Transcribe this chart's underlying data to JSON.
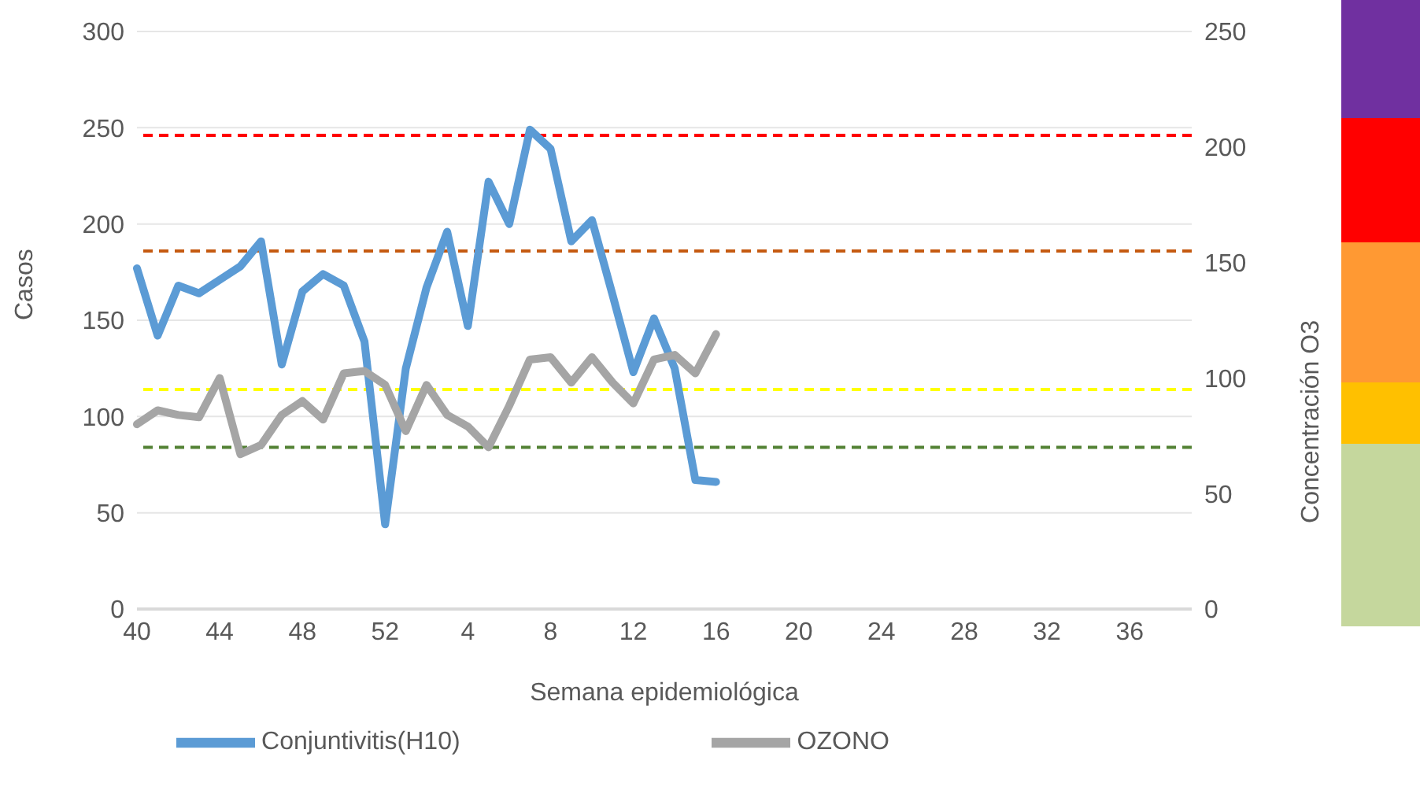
{
  "chart_data": {
    "type": "line",
    "xlabel": "Semana epidemiológica",
    "ylabel": "Casos",
    "y2label": "Concentración O3",
    "categories": [
      "40",
      null,
      null,
      null,
      "44",
      null,
      null,
      null,
      "48",
      null,
      null,
      null,
      "52",
      null,
      null,
      null,
      "4",
      null,
      null,
      null,
      "8",
      null,
      null,
      null,
      "12",
      null,
      null,
      null,
      "16",
      null,
      null,
      null,
      "20",
      null,
      null,
      null,
      "24",
      null,
      null,
      null,
      "28",
      null,
      null,
      null,
      "32",
      null,
      null,
      null,
      "36",
      null,
      null,
      null
    ],
    "series": [
      {
        "name": "Conjuntivitis(H10)",
        "color": "#5b9bd5",
        "values": [
          177,
          142,
          168,
          164,
          171,
          178,
          191,
          127,
          165,
          174,
          168,
          139,
          44,
          125,
          167,
          196,
          147,
          222,
          200,
          249,
          239,
          191,
          202,
          163,
          123,
          151,
          125,
          67,
          66,
          null,
          null,
          null,
          null,
          null,
          null,
          null,
          null,
          null,
          null,
          null,
          null,
          null,
          null,
          null,
          null,
          null,
          null,
          null,
          null,
          null,
          null,
          null
        ]
      },
      {
        "name": "OZONO",
        "color": "#a5a5a5",
        "axis": "y2",
        "values": [
          80,
          86,
          84,
          83,
          100,
          67,
          71,
          84,
          90,
          82,
          102,
          103,
          97,
          77,
          97,
          84,
          79,
          70,
          88,
          108,
          109,
          98,
          109,
          98,
          89,
          108,
          110,
          102,
          119,
          null,
          null,
          null,
          null,
          null,
          null,
          null,
          null,
          null,
          null,
          null,
          null,
          null,
          null,
          null,
          null,
          null,
          null,
          null,
          null,
          null,
          null,
          null
        ]
      }
    ],
    "ylim": [
      0,
      300
    ],
    "yticks": [
      0,
      50,
      100,
      150,
      200,
      250,
      300
    ],
    "y2lim": [
      0,
      250
    ],
    "y2ticks": [
      0,
      50,
      100,
      150,
      200,
      250
    ],
    "ref_lines": [
      {
        "axis": "y2",
        "value": 205,
        "color": "#ff0000",
        "line_style": "dashed"
      },
      {
        "axis": "y2",
        "value": 155,
        "color": "#c55a11",
        "line_style": "dashed"
      },
      {
        "axis": "y2",
        "value": 95,
        "color": "#ffff00",
        "line_style": "dashed"
      },
      {
        "axis": "y2",
        "value": 70,
        "color": "#548235",
        "line_style": "dashed"
      }
    ],
    "grid": "y",
    "legend": "bottom",
    "marker": "none",
    "line_style": "solid"
  }
}
